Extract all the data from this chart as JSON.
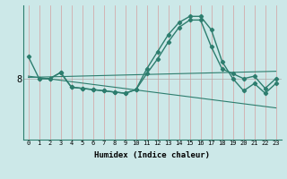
{
  "xlabel": "Humidex (Indice chaleur)",
  "bg_color": "#cce8e8",
  "line_color": "#2d7d6e",
  "vgrid_color": "#d4a0a0",
  "hgrid_color": "#aaaaaa",
  "xlim": [
    -0.5,
    23.5
  ],
  "ylim": [
    5.5,
    11.0
  ],
  "xticks": [
    0,
    1,
    2,
    3,
    4,
    5,
    6,
    7,
    8,
    9,
    10,
    11,
    12,
    13,
    14,
    15,
    16,
    17,
    18,
    19,
    20,
    21,
    22,
    23
  ],
  "ytick_val": 8.0,
  "ytick_label": "8",
  "lines": [
    {
      "x": [
        0,
        1,
        2,
        3,
        4,
        5,
        6,
        7,
        8,
        9,
        10,
        11,
        12,
        13,
        14,
        15,
        16,
        17,
        18,
        19,
        20,
        21,
        22,
        23
      ],
      "y": [
        8.9,
        8.0,
        8.0,
        8.25,
        7.65,
        7.6,
        7.55,
        7.5,
        7.45,
        7.4,
        7.55,
        8.4,
        9.1,
        9.8,
        10.3,
        10.55,
        10.55,
        10.0,
        8.7,
        8.0,
        7.5,
        7.8,
        7.4,
        7.8
      ],
      "marker": "D",
      "markersize": 2.2,
      "linewidth": 1.0
    },
    {
      "x": [
        1,
        2,
        3,
        4,
        5,
        6,
        7,
        8,
        9,
        10,
        11,
        12,
        13,
        14,
        15,
        16,
        17,
        18,
        19,
        20,
        21,
        22,
        23
      ],
      "y": [
        8.0,
        8.0,
        8.25,
        7.65,
        7.6,
        7.55,
        7.5,
        7.45,
        7.4,
        7.55,
        8.2,
        8.8,
        9.5,
        10.1,
        10.4,
        10.4,
        9.3,
        8.4,
        8.2,
        8.0,
        8.1,
        7.6,
        8.0
      ],
      "marker": "D",
      "markersize": 2.2,
      "linewidth": 1.0
    },
    {
      "x": [
        0,
        23
      ],
      "y": [
        8.1,
        6.8
      ],
      "marker": null,
      "markersize": 0,
      "linewidth": 0.8
    },
    {
      "x": [
        0,
        23
      ],
      "y": [
        8.05,
        8.3
      ],
      "marker": null,
      "markersize": 0,
      "linewidth": 0.8
    }
  ]
}
